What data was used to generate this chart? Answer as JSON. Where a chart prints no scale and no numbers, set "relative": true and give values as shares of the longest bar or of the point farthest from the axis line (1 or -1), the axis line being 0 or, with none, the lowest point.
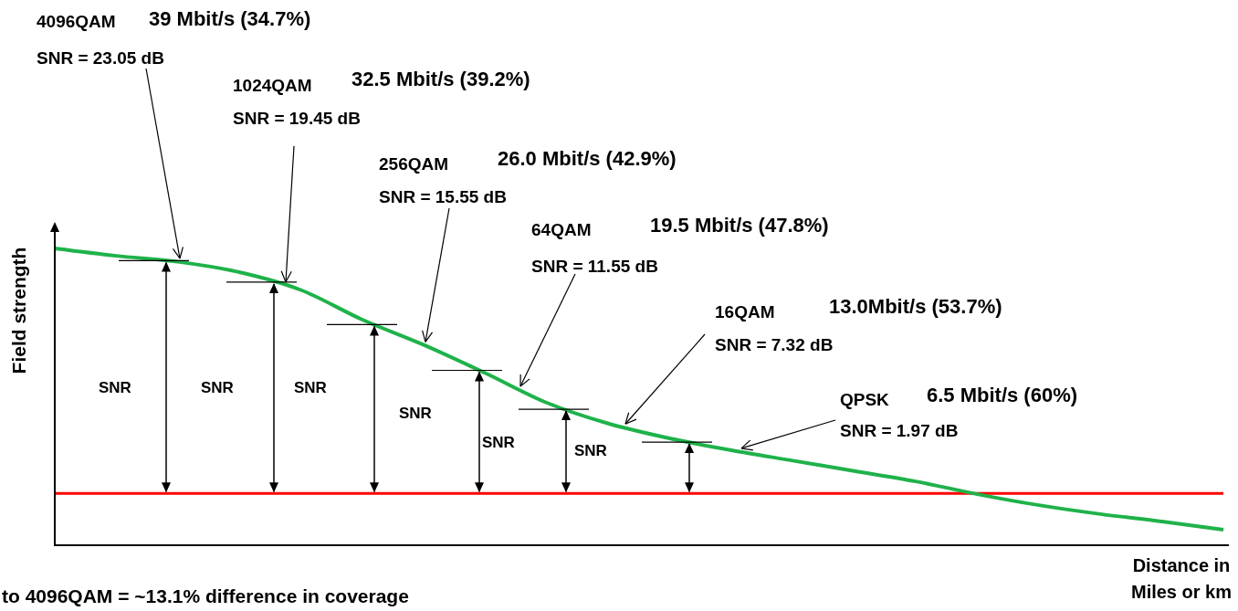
{
  "chart_data": {
    "type": "line",
    "relative": true,
    "ylabel": "Field strength",
    "xlabel": "Distance in\nMiles or km",
    "grid": false,
    "legend": false,
    "marker": "none",
    "line_style": "solid",
    "categories": [
      null,
      null,
      null,
      null,
      null,
      null,
      null,
      null,
      null,
      null,
      null,
      null,
      null,
      null,
      null,
      null,
      null,
      null,
      null,
      null
    ],
    "series": [
      {
        "color": "#1fb24a",
        "values": [
          1.0,
          0.975,
          0.955,
          0.92,
          0.86,
          0.76,
          0.675,
          0.58,
          0.48,
          0.41,
          0.36,
          0.32,
          0.285,
          0.25,
          0.215,
          0.172,
          0.135,
          0.105,
          0.08,
          0.052
        ]
      }
    ],
    "ref_lines": [
      {
        "axis": "y",
        "value": 0.175,
        "color": "#ff0000"
      }
    ],
    "annotations": [
      "4096QAM",
      "39 Mbit/s  (34.7%)",
      "SNR = 23.05 dB",
      "1024QAM",
      "32.5 Mbit/s  (39.2%)",
      "SNR = 19.45 dB",
      "256QAM",
      "26.0 Mbit/s  (42.9%)",
      "SNR = 15.55 dB",
      "64QAM",
      "19.5 Mbit/s  (47.8%)",
      "SNR = 11.55 dB",
      "16QAM",
      "13.0Mbit/s  (53.7%)",
      "SNR = 7.32 dB",
      "QPSK",
      "6.5 Mbit/s (60%)",
      "SNR = 1.97 dB",
      "SNR",
      "SNR",
      "SNR",
      "SNR",
      "SNR",
      "SNR",
      "to 4096QAM  = ~13.1% difference in coverage"
    ]
  }
}
